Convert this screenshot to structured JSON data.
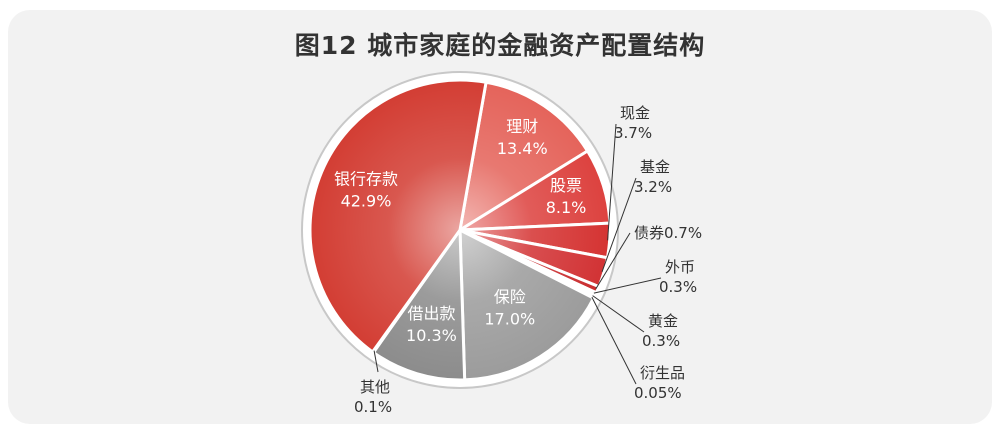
{
  "chart_data": {
    "type": "pie",
    "title": "图12 城市家庭的金融资产配置结构",
    "slices": [
      {
        "label": "理财",
        "value": 13.4,
        "value_label": "13.4%",
        "color": "#e46158",
        "placement": "inside"
      },
      {
        "label": "股票",
        "value": 8.1,
        "value_label": "8.1%",
        "color": "#dc3f3c",
        "placement": "inside"
      },
      {
        "label": "现金",
        "value": 3.7,
        "value_label": "3.7%",
        "color": "#d4302f",
        "placement": "outside"
      },
      {
        "label": "基金",
        "value": 3.2,
        "value_label": "3.2%",
        "color": "#d12f31",
        "placement": "outside"
      },
      {
        "label": "债券",
        "value": 0.7,
        "value_label": "0.7%",
        "color": "#c92a2c",
        "placement": "outside"
      },
      {
        "label": "外币",
        "value": 0.3,
        "value_label": "0.3%",
        "color": "#a8a8a8",
        "placement": "outside"
      },
      {
        "label": "黄金",
        "value": 0.3,
        "value_label": "0.3%",
        "color": "#9f9f9f",
        "placement": "outside"
      },
      {
        "label": "衍生品",
        "value": 0.05,
        "value_label": "0.05%",
        "color": "#a3a3a3",
        "placement": "outside"
      },
      {
        "label": "保险",
        "value": 17.0,
        "value_label": "17.0%",
        "color": "#9a9a9a",
        "placement": "inside"
      },
      {
        "label": "借出款",
        "value": 10.3,
        "value_label": "10.3%",
        "color": "#8a8a8a",
        "placement": "inside"
      },
      {
        "label": "其他",
        "value": 0.1,
        "value_label": "0.1%",
        "color": "#b0b0b0",
        "placement": "outside"
      },
      {
        "label": "银行存款",
        "value": 42.9,
        "value_label": "42.9%",
        "color": "#d23a30",
        "placement": "inside"
      }
    ],
    "start_angle_deg": -80,
    "legend": "none"
  }
}
